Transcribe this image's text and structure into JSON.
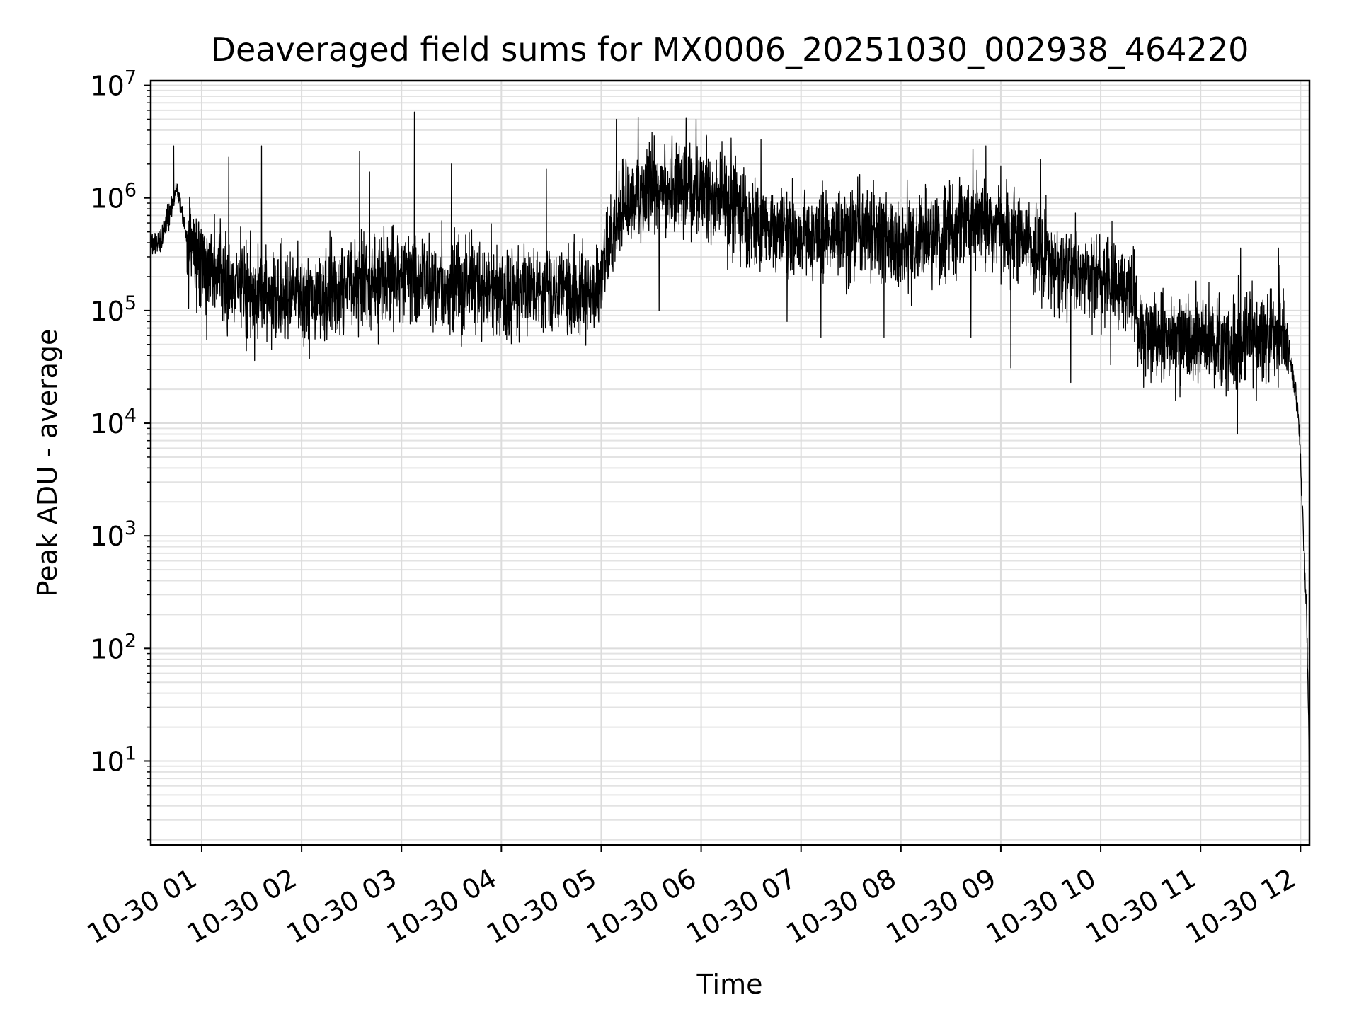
{
  "chart_data": {
    "type": "line",
    "title": "Deaveraged field sums for MX0006_20251030_002938_464220",
    "xlabel": "Time",
    "ylabel": "Peak ADU - average",
    "yscale": "log",
    "ylim": [
      1.8,
      11000000
    ],
    "xlim_hours": [
      0.49,
      12.09
    ],
    "grid": true,
    "line_color": "#000000",
    "x_ticks": [
      {
        "hour": 1,
        "label": "10-30 01"
      },
      {
        "hour": 2,
        "label": "10-30 02"
      },
      {
        "hour": 3,
        "label": "10-30 03"
      },
      {
        "hour": 4,
        "label": "10-30 04"
      },
      {
        "hour": 5,
        "label": "10-30 05"
      },
      {
        "hour": 6,
        "label": "10-30 06"
      },
      {
        "hour": 7,
        "label": "10-30 07"
      },
      {
        "hour": 8,
        "label": "10-30 08"
      },
      {
        "hour": 9,
        "label": "10-30 09"
      },
      {
        "hour": 10,
        "label": "10-30 10"
      },
      {
        "hour": 11,
        "label": "10-30 11"
      },
      {
        "hour": 12,
        "label": "10-30 12"
      }
    ],
    "y_ticks": [
      {
        "exp": 1,
        "base": "10",
        "sup": "1"
      },
      {
        "exp": 2,
        "base": "10",
        "sup": "2"
      },
      {
        "exp": 3,
        "base": "10",
        "sup": "3"
      },
      {
        "exp": 4,
        "base": "10",
        "sup": "4"
      },
      {
        "exp": 5,
        "base": "10",
        "sup": "5"
      },
      {
        "exp": 6,
        "base": "10",
        "sup": "6"
      },
      {
        "exp": 7,
        "base": "10",
        "sup": "7"
      }
    ],
    "series": [
      {
        "name": "Peak ADU - average",
        "envelope_hours": [
          0.49,
          0.6,
          0.75,
          0.85,
          1.0,
          1.5,
          2.0,
          2.5,
          3.0,
          3.5,
          4.0,
          4.5,
          4.9,
          5.0,
          5.1,
          5.2,
          5.5,
          6.0,
          6.5,
          7.0,
          7.5,
          8.0,
          8.5,
          8.8,
          9.0,
          9.3,
          9.6,
          10.0,
          10.3,
          10.4,
          10.7,
          11.0,
          11.5,
          11.85,
          11.92,
          11.97,
          12.0,
          12.03,
          12.06,
          12.08,
          12.09
        ],
        "envelope_median": [
          400000,
          420000,
          1250000,
          450000,
          250000,
          150000,
          130000,
          160000,
          200000,
          170000,
          150000,
          140000,
          130000,
          200000,
          450000,
          900000,
          1100000,
          1200000,
          600000,
          450000,
          500000,
          400000,
          500000,
          700000,
          550000,
          400000,
          250000,
          200000,
          150000,
          65000,
          55000,
          55000,
          58000,
          60000,
          30000,
          15000,
          5000,
          1000,
          200,
          30,
          4
        ],
        "spikes": [
          {
            "hour": 0.72,
            "value": 2900000
          },
          {
            "hour": 1.27,
            "value": 2300000
          },
          {
            "hour": 1.6,
            "value": 2900000
          },
          {
            "hour": 2.58,
            "value": 2600000
          },
          {
            "hour": 2.68,
            "value": 1700000
          },
          {
            "hour": 3.13,
            "value": 5800000
          },
          {
            "hour": 3.5,
            "value": 2000000
          },
          {
            "hour": 4.45,
            "value": 1800000
          },
          {
            "hour": 5.15,
            "value": 5000000
          },
          {
            "hour": 5.37,
            "value": 5200000
          },
          {
            "hour": 5.85,
            "value": 5100000
          },
          {
            "hour": 5.95,
            "value": 5000000
          },
          {
            "hour": 6.3,
            "value": 3400000
          },
          {
            "hour": 6.6,
            "value": 3300000
          },
          {
            "hour": 8.72,
            "value": 2700000
          },
          {
            "hour": 8.85,
            "value": 2900000
          },
          {
            "hour": 9.4,
            "value": 2200000
          },
          {
            "hour": 11.4,
            "value": 360000
          },
          {
            "hour": 11.78,
            "value": 360000
          }
        ],
        "dips": [
          {
            "hour": 0.87,
            "value": 105000
          },
          {
            "hour": 1.05,
            "value": 55000
          },
          {
            "hour": 1.53,
            "value": 36000
          },
          {
            "hour": 1.7,
            "value": 45000
          },
          {
            "hour": 5.58,
            "value": 100000
          },
          {
            "hour": 6.86,
            "value": 80000
          },
          {
            "hour": 7.2,
            "value": 58000
          },
          {
            "hour": 7.83,
            "value": 58000
          },
          {
            "hour": 8.7,
            "value": 58000
          },
          {
            "hour": 9.1,
            "value": 31000
          },
          {
            "hour": 9.7,
            "value": 23000
          },
          {
            "hour": 10.1,
            "value": 33000
          },
          {
            "hour": 10.45,
            "value": 26000
          },
          {
            "hour": 10.75,
            "value": 16000
          },
          {
            "hour": 11.37,
            "value": 8000
          }
        ]
      }
    ]
  }
}
